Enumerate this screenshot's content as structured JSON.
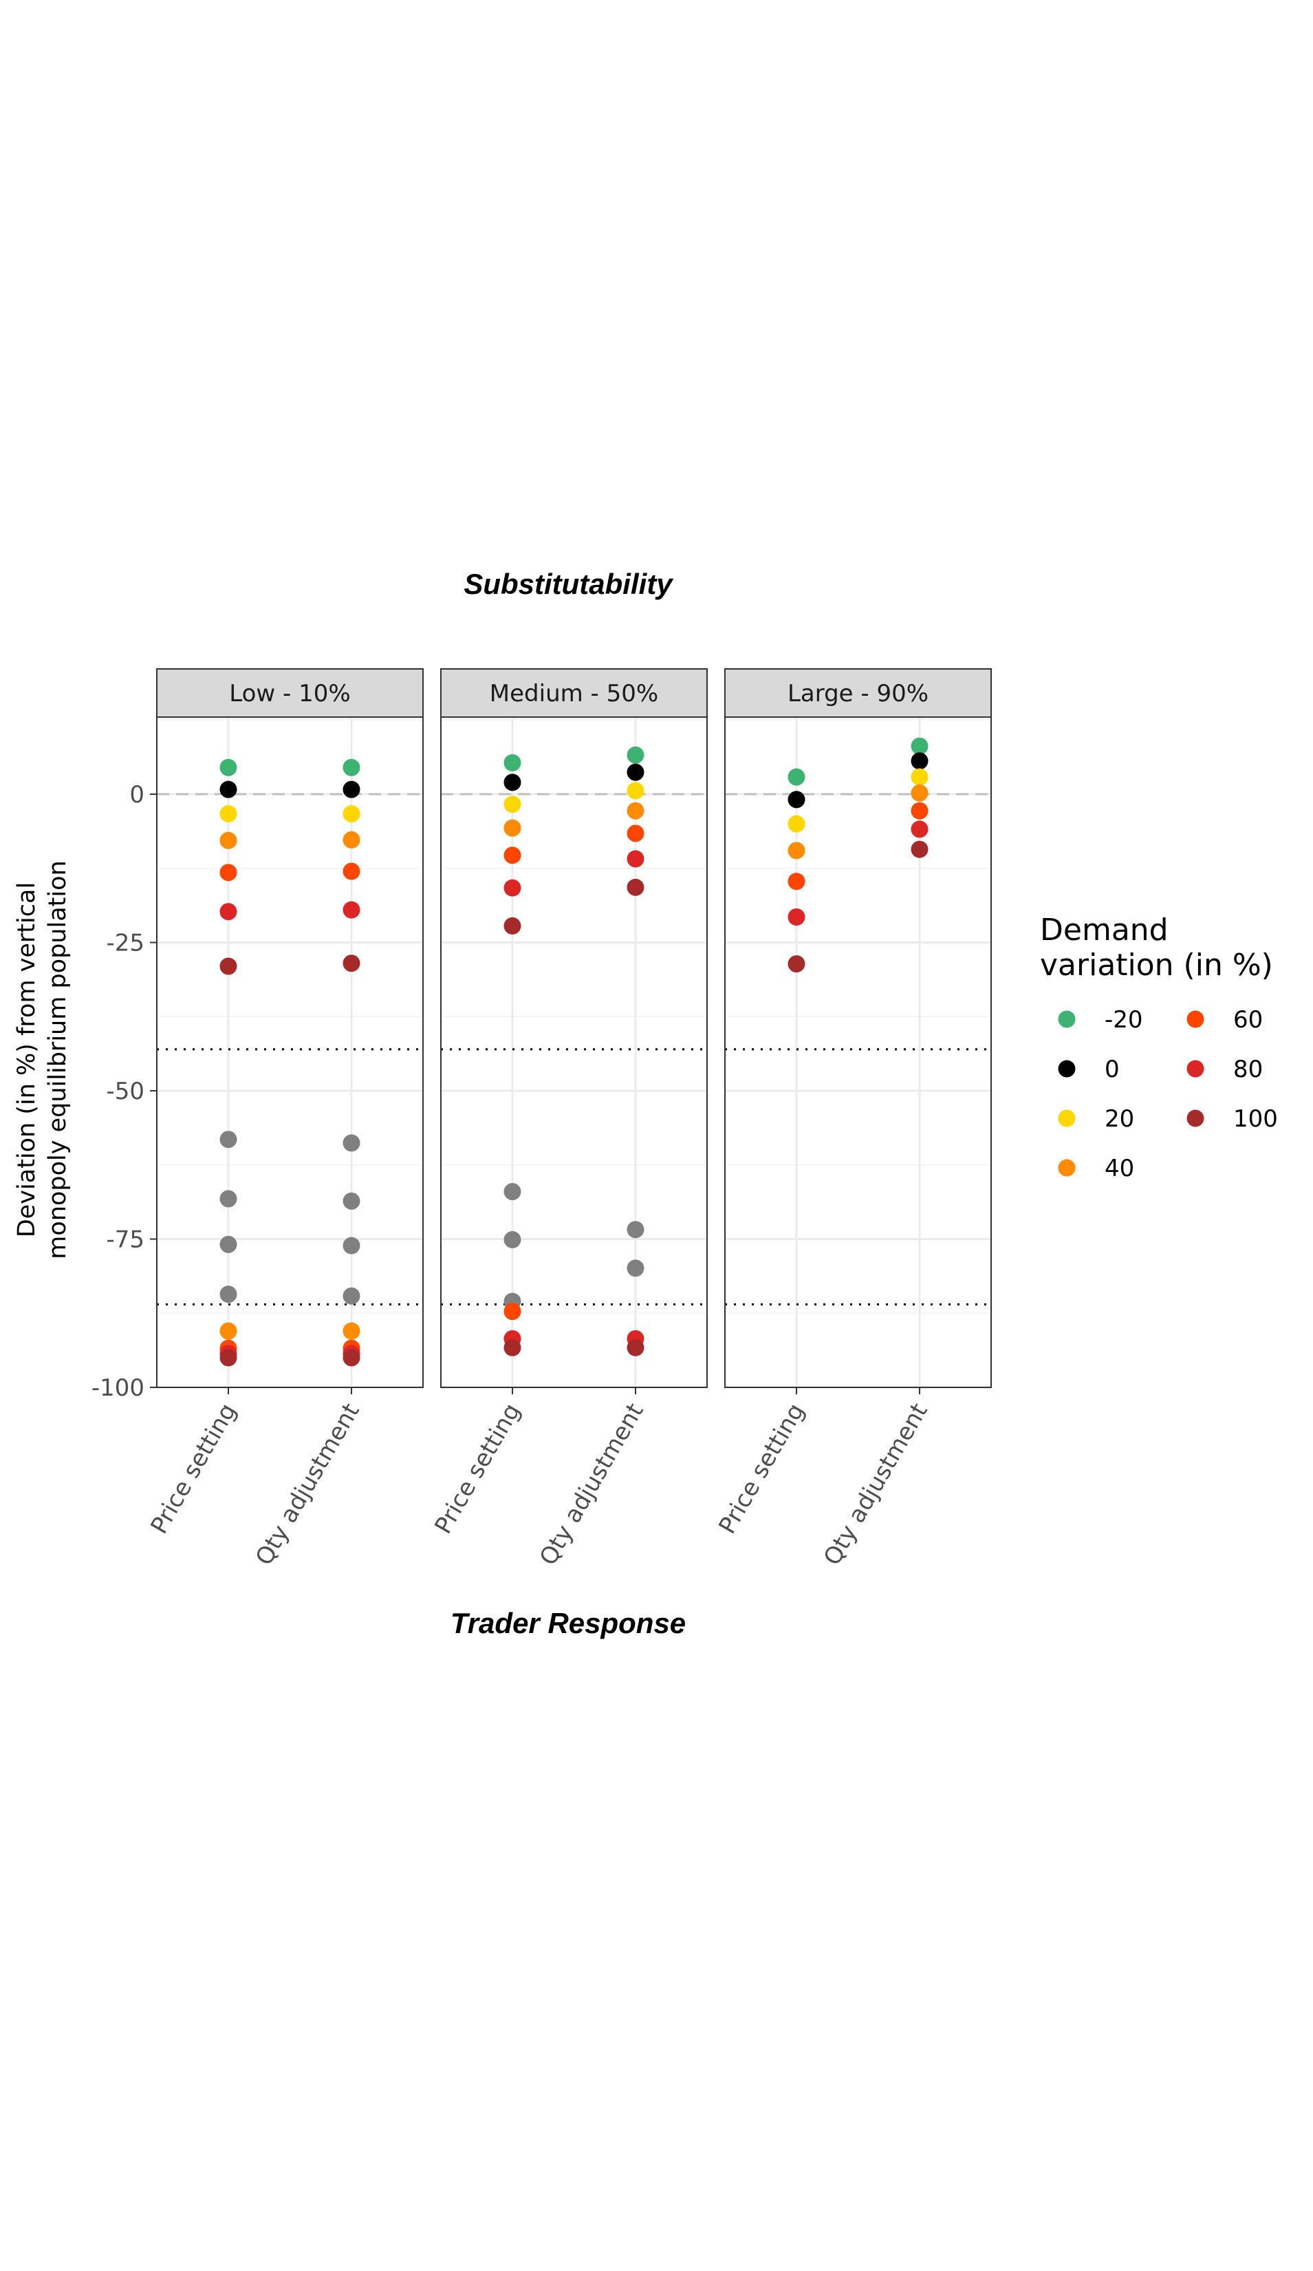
{
  "chart_data": {
    "type": "scatter",
    "title": "Substitutability",
    "xlabel": "Trader Response",
    "ylabel_line1": "Deviation (in %) from vertical",
    "ylabel_line2": "monopoly equilibrium population",
    "categories": [
      "Price setting",
      "Qty adjustment"
    ],
    "ylim": [
      -100,
      13
    ],
    "yticks": [
      0,
      -25,
      -50,
      -75,
      -100
    ],
    "ytick_labels": [
      "0",
      "-25",
      "-50",
      "-75",
      "-100"
    ],
    "reference_lines": {
      "dashed_y": 0,
      "dotted_y": [
        -43,
        -86
      ]
    },
    "grid": true,
    "legend": {
      "title_line1": "Demand",
      "title_line2": "variation (in %)",
      "position": "right",
      "entries": [
        {
          "label": "-20",
          "color": "#3cb371"
        },
        {
          "label": "0",
          "color": "#000000"
        },
        {
          "label": "20",
          "color": "#ffd700"
        },
        {
          "label": "40",
          "color": "#ff8c00"
        },
        {
          "label": "60",
          "color": "#ff4500"
        },
        {
          "label": "80",
          "color": "#dc2626"
        },
        {
          "label": "100",
          "color": "#a52a2a"
        }
      ]
    },
    "point_colors": {
      "-20": "#3cb371",
      "0": "#000000",
      "20": "#ffd700",
      "40": "#ff8c00",
      "60": "#ff4500",
      "80": "#dc2626",
      "100": "#a52a2a",
      "infeasible": "#808080"
    },
    "panels": [
      {
        "label": "Low - 10%",
        "points": [
          {
            "x": "Price setting",
            "y": 4.5,
            "group": "-20"
          },
          {
            "x": "Price setting",
            "y": 0.8,
            "group": "0"
          },
          {
            "x": "Price setting",
            "y": -3.3,
            "group": "20"
          },
          {
            "x": "Price setting",
            "y": -7.8,
            "group": "40"
          },
          {
            "x": "Price setting",
            "y": -13.2,
            "group": "60"
          },
          {
            "x": "Price setting",
            "y": -19.8,
            "group": "80"
          },
          {
            "x": "Price setting",
            "y": -29,
            "group": "100"
          },
          {
            "x": "Price setting",
            "y": -58.2,
            "group": "infeasible"
          },
          {
            "x": "Price setting",
            "y": -68.2,
            "group": "infeasible"
          },
          {
            "x": "Price setting",
            "y": -75.9,
            "group": "infeasible"
          },
          {
            "x": "Price setting",
            "y": -84.3,
            "group": "infeasible"
          },
          {
            "x": "Price setting",
            "y": -90.5,
            "group": "40"
          },
          {
            "x": "Price setting",
            "y": -93.4,
            "group": "60"
          },
          {
            "x": "Price setting",
            "y": -94.3,
            "group": "80"
          },
          {
            "x": "Price setting",
            "y": -95,
            "group": "100"
          },
          {
            "x": "Qty adjustment",
            "y": 4.5,
            "group": "-20"
          },
          {
            "x": "Qty adjustment",
            "y": 0.8,
            "group": "0"
          },
          {
            "x": "Qty adjustment",
            "y": -3.3,
            "group": "20"
          },
          {
            "x": "Qty adjustment",
            "y": -7.7,
            "group": "40"
          },
          {
            "x": "Qty adjustment",
            "y": -13,
            "group": "60"
          },
          {
            "x": "Qty adjustment",
            "y": -19.5,
            "group": "80"
          },
          {
            "x": "Qty adjustment",
            "y": -28.5,
            "group": "100"
          },
          {
            "x": "Qty adjustment",
            "y": -58.8,
            "group": "infeasible"
          },
          {
            "x": "Qty adjustment",
            "y": -68.6,
            "group": "infeasible"
          },
          {
            "x": "Qty adjustment",
            "y": -76.1,
            "group": "infeasible"
          },
          {
            "x": "Qty adjustment",
            "y": -84.6,
            "group": "infeasible"
          },
          {
            "x": "Qty adjustment",
            "y": -90.5,
            "group": "40"
          },
          {
            "x": "Qty adjustment",
            "y": -93.4,
            "group": "60"
          },
          {
            "x": "Qty adjustment",
            "y": -94.3,
            "group": "80"
          },
          {
            "x": "Qty adjustment",
            "y": -95,
            "group": "100"
          }
        ]
      },
      {
        "label": "Medium - 50%",
        "points": [
          {
            "x": "Price setting",
            "y": 5.3,
            "group": "-20"
          },
          {
            "x": "Price setting",
            "y": 2,
            "group": "0"
          },
          {
            "x": "Price setting",
            "y": -1.7,
            "group": "20"
          },
          {
            "x": "Price setting",
            "y": -5.7,
            "group": "40"
          },
          {
            "x": "Price setting",
            "y": -10.3,
            "group": "60"
          },
          {
            "x": "Price setting",
            "y": -15.8,
            "group": "80"
          },
          {
            "x": "Price setting",
            "y": -22.2,
            "group": "100"
          },
          {
            "x": "Price setting",
            "y": -67,
            "group": "infeasible"
          },
          {
            "x": "Price setting",
            "y": -75.1,
            "group": "infeasible"
          },
          {
            "x": "Price setting",
            "y": -85.5,
            "group": "infeasible"
          },
          {
            "x": "Price setting",
            "y": -87.2,
            "group": "60"
          },
          {
            "x": "Price setting",
            "y": -91.8,
            "group": "80"
          },
          {
            "x": "Price setting",
            "y": -93.3,
            "group": "100"
          },
          {
            "x": "Qty adjustment",
            "y": 6.6,
            "group": "-20"
          },
          {
            "x": "Qty adjustment",
            "y": 3.7,
            "group": "0"
          },
          {
            "x": "Qty adjustment",
            "y": 0.6,
            "group": "20"
          },
          {
            "x": "Qty adjustment",
            "y": -2.8,
            "group": "40"
          },
          {
            "x": "Qty adjustment",
            "y": -6.6,
            "group": "60"
          },
          {
            "x": "Qty adjustment",
            "y": -10.9,
            "group": "80"
          },
          {
            "x": "Qty adjustment",
            "y": -15.7,
            "group": "100"
          },
          {
            "x": "Qty adjustment",
            "y": -73.4,
            "group": "infeasible"
          },
          {
            "x": "Qty adjustment",
            "y": -79.9,
            "group": "infeasible"
          },
          {
            "x": "Qty adjustment",
            "y": -91.8,
            "group": "80"
          },
          {
            "x": "Qty adjustment",
            "y": -93.3,
            "group": "100"
          }
        ]
      },
      {
        "label": "Large - 90%",
        "points": [
          {
            "x": "Price setting",
            "y": 2.9,
            "group": "-20"
          },
          {
            "x": "Price setting",
            "y": -0.9,
            "group": "0"
          },
          {
            "x": "Price setting",
            "y": -5,
            "group": "20"
          },
          {
            "x": "Price setting",
            "y": -9.5,
            "group": "40"
          },
          {
            "x": "Price setting",
            "y": -14.7,
            "group": "60"
          },
          {
            "x": "Price setting",
            "y": -20.7,
            "group": "80"
          },
          {
            "x": "Price setting",
            "y": -28.6,
            "group": "100"
          },
          {
            "x": "Qty adjustment",
            "y": 8.1,
            "group": "-20"
          },
          {
            "x": "Qty adjustment",
            "y": 5.6,
            "group": "0"
          },
          {
            "x": "Qty adjustment",
            "y": 2.9,
            "group": "20"
          },
          {
            "x": "Qty adjustment",
            "y": 0.2,
            "group": "40"
          },
          {
            "x": "Qty adjustment",
            "y": -2.8,
            "group": "60"
          },
          {
            "x": "Qty adjustment",
            "y": -5.9,
            "group": "80"
          },
          {
            "x": "Qty adjustment",
            "y": -9.3,
            "group": "100"
          }
        ]
      }
    ]
  }
}
